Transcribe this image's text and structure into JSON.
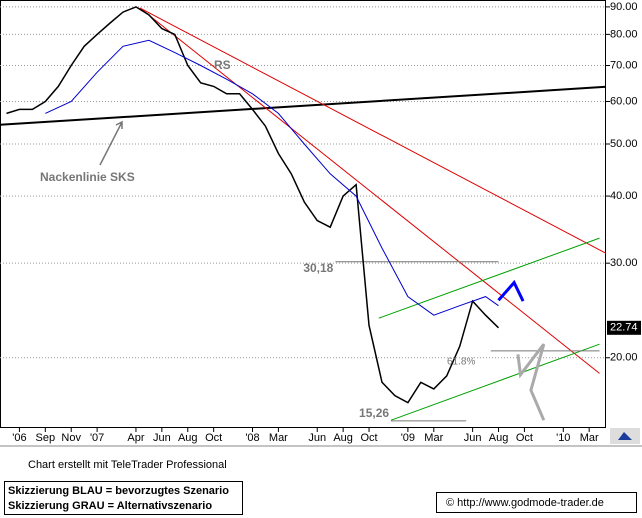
{
  "chart_data": {
    "type": "line",
    "log_y": true,
    "grid": true,
    "xlim": [
      4.5,
      51.3
    ],
    "ylim": [
      14.8,
      92.7
    ],
    "xticks": [
      {
        "value": 6,
        "label": "'06"
      },
      {
        "value": 8,
        "label": "Sep"
      },
      {
        "value": 10,
        "label": "Nov"
      },
      {
        "value": 12,
        "label": "'07"
      },
      {
        "value": 15,
        "label": "Apr"
      },
      {
        "value": 17,
        "label": "Jun"
      },
      {
        "value": 19,
        "label": "Aug"
      },
      {
        "value": 21,
        "label": "Oct"
      },
      {
        "value": 24,
        "label": "'08"
      },
      {
        "value": 26,
        "label": "Mar"
      },
      {
        "value": 29,
        "label": "Jun"
      },
      {
        "value": 31,
        "label": "Aug"
      },
      {
        "value": 33,
        "label": "Oct"
      },
      {
        "value": 36,
        "label": "'09"
      },
      {
        "value": 38,
        "label": "Mar"
      },
      {
        "value": 41,
        "label": "Jun"
      },
      {
        "value": 43,
        "label": "Aug"
      },
      {
        "value": 45,
        "label": "Oct"
      },
      {
        "value": 48,
        "label": "'10"
      },
      {
        "value": 50,
        "label": "Mar"
      }
    ],
    "yticks": [
      {
        "value": 20,
        "label": "20.00"
      },
      {
        "value": 30,
        "label": "30.00"
      },
      {
        "value": 40,
        "label": "40.00"
      },
      {
        "value": 50,
        "label": "50.00"
      },
      {
        "value": 60,
        "label": "60.00"
      },
      {
        "value": 70,
        "label": "70.00"
      },
      {
        "value": 80,
        "label": "80.00"
      },
      {
        "value": 90,
        "label": "90.00"
      }
    ],
    "series": [
      {
        "color": "#000000",
        "x": [
          5,
          6,
          7,
          8,
          9,
          10,
          11,
          12,
          13,
          14,
          15,
          16,
          17,
          18,
          19,
          20,
          21,
          22,
          23,
          24,
          25,
          26,
          27,
          28,
          29,
          30,
          31,
          32,
          33,
          34,
          35,
          36,
          37,
          38,
          39,
          40,
          41,
          42,
          43
        ],
        "values": [
          57,
          58,
          58,
          60,
          64,
          70,
          76,
          80,
          84,
          88,
          90,
          87,
          82,
          80,
          70,
          65,
          64,
          62,
          62,
          58,
          54,
          48,
          44,
          39,
          36,
          35,
          40,
          42,
          23,
          18,
          17,
          16.5,
          18,
          17.5,
          18.5,
          21,
          25.5,
          24,
          22.74
        ]
      },
      {
        "color": "#0000cc",
        "x": [
          8,
          10,
          12,
          14,
          16,
          18,
          20,
          22,
          24,
          26,
          28,
          30,
          32,
          34,
          36,
          38,
          40,
          42,
          43
        ],
        "values": [
          57,
          60,
          68,
          76,
          78,
          74,
          70,
          66,
          62,
          57,
          50,
          44,
          40,
          32,
          26,
          24,
          25,
          26,
          25
        ]
      }
    ],
    "lines": [
      {
        "color": "#000000",
        "x": [
          4.5,
          51.3
        ],
        "y": [
          54.3,
          63.9
        ]
      },
      {
        "color": "#e00000",
        "x": [
          15.3,
          51.3
        ],
        "y": [
          89.6,
          31.3
        ]
      },
      {
        "color": "#e00000",
        "x": [
          15.3,
          50.8
        ],
        "y": [
          89.6,
          18.7
        ]
      },
      {
        "color": "#00a000",
        "x": [
          33.75,
          50.8
        ],
        "y": [
          23.7,
          33.4
        ]
      },
      {
        "color": "#00a000",
        "x": [
          34.7,
          50.8
        ],
        "y": [
          15.3,
          21.2
        ]
      }
    ],
    "scenarios": [
      {
        "color": "#0000ff",
        "x": [
          43,
          44.2,
          44.9
        ],
        "y": [
          25.6,
          27.6,
          25.5
        ]
      },
      {
        "color": "#aaaaaa",
        "x": [
          44.5,
          44.7,
          46.5,
          45.5,
          46.5
        ],
        "y": [
          20.3,
          18.6,
          21.2,
          17.4,
          15.3
        ]
      }
    ],
    "levels": [
      {
        "value": 30.18,
        "label": "30,18",
        "x": [
          30.4,
          43
        ]
      },
      {
        "value": 15.26,
        "label": "15,26",
        "x": [
          34.7,
          40.5
        ]
      },
      {
        "value": 20.6,
        "x": [
          42.4,
          50.8
        ]
      }
    ],
    "last_price": {
      "value": 22.74,
      "label": "22.74"
    },
    "annotations": [
      "Nackenlinie SKS",
      "RS",
      "61.8%"
    ]
  },
  "footer": {
    "credit": "Chart erstellt mit TeleTrader Professional",
    "blue": "Skizzierung BLAU = bevorzugtes Szenario",
    "gray": "Skizzierung GRAU = Alternativszenario",
    "url": "© http://www.godmode-trader.de"
  }
}
